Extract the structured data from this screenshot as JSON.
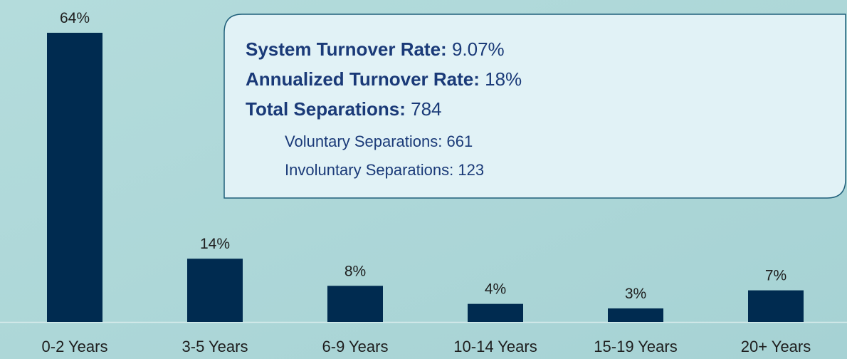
{
  "chart_data": {
    "type": "bar",
    "categories": [
      "0-2 Years",
      "3-5 Years",
      "6-9 Years",
      "10-14 Years",
      "15-19 Years",
      "20+ Years"
    ],
    "values": [
      64,
      14,
      8,
      4,
      3,
      7
    ],
    "value_labels": [
      "64%",
      "14%",
      "8%",
      "4%",
      "3%",
      "7%"
    ],
    "color": "#002b50",
    "annotation": {
      "main": [
        {
          "label": "System Turnover Rate:",
          "value": "9.07%"
        },
        {
          "label": "Annualized Turnover Rate:",
          "value": "18%"
        },
        {
          "label": "Total Separations:",
          "value": "784"
        }
      ],
      "sub": [
        "Voluntary Separations: 661",
        "Involuntary Separations: 123"
      ]
    }
  }
}
